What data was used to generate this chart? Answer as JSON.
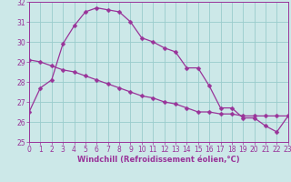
{
  "line1_x": [
    0,
    1,
    2,
    3,
    4,
    5,
    6,
    7,
    8,
    9,
    10,
    11,
    12,
    13,
    14,
    15,
    16,
    17,
    18,
    19,
    20,
    21,
    22,
    23
  ],
  "line1_y": [
    26.5,
    27.7,
    28.1,
    29.9,
    30.8,
    31.5,
    31.7,
    31.6,
    31.5,
    31.0,
    30.2,
    30.0,
    29.7,
    29.5,
    28.7,
    28.7,
    27.8,
    26.7,
    26.7,
    26.2,
    26.2,
    25.8,
    25.5,
    26.3
  ],
  "line2_x": [
    0,
    1,
    2,
    3,
    4,
    5,
    6,
    7,
    8,
    9,
    10,
    11,
    12,
    13,
    14,
    15,
    16,
    17,
    18,
    19,
    20,
    21,
    22,
    23
  ],
  "line2_y": [
    29.1,
    29.0,
    28.8,
    28.6,
    28.5,
    28.3,
    28.1,
    27.9,
    27.7,
    27.5,
    27.3,
    27.2,
    27.0,
    26.9,
    26.7,
    26.5,
    26.5,
    26.4,
    26.4,
    26.3,
    26.3,
    26.3,
    26.3,
    26.3
  ],
  "line_color": "#993399",
  "bg_color": "#cce8e8",
  "grid_color": "#99cccc",
  "xlabel": "Windchill (Refroidissement éolien,°C)",
  "ylim_min": 25,
  "ylim_max": 32,
  "xlim_min": 0,
  "xlim_max": 23,
  "yticks": [
    25,
    26,
    27,
    28,
    29,
    30,
    31,
    32
  ],
  "xticks": [
    0,
    1,
    2,
    3,
    4,
    5,
    6,
    7,
    8,
    9,
    10,
    11,
    12,
    13,
    14,
    15,
    16,
    17,
    18,
    19,
    20,
    21,
    22,
    23
  ],
  "markersize": 2.5,
  "linewidth": 0.9,
  "tick_fontsize": 5.5,
  "xlabel_fontsize": 6.0
}
